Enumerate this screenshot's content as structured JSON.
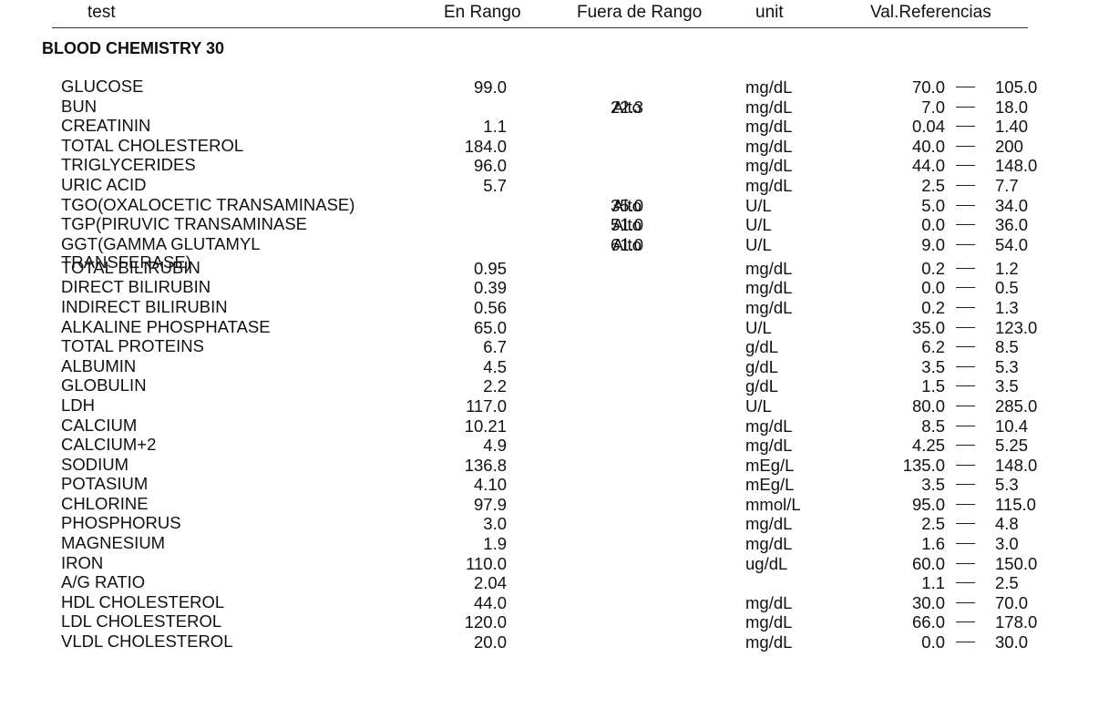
{
  "header": {
    "test": "test",
    "en_rango": "En Rango",
    "fuera_de_rango": "Fuera de Rango",
    "unit": "unit",
    "val_referencias": "Val.Referencias"
  },
  "section_title": "BLOOD CHEMISTRY 30",
  "rows": [
    {
      "test": "GLUCOSE",
      "in_range": "99.0",
      "out_range": "",
      "flag": "",
      "unit": "mg/dL",
      "ref_low": "70.0",
      "ref_high": "105.0"
    },
    {
      "test": "BUN",
      "in_range": "",
      "out_range": "22.3",
      "flag": "Alto",
      "unit": "mg/dL",
      "ref_low": "7.0",
      "ref_high": "18.0"
    },
    {
      "test": "CREATININ",
      "in_range": "1.1",
      "out_range": "",
      "flag": "",
      "unit": "mg/dL",
      "ref_low": "0.04",
      "ref_high": "1.40"
    },
    {
      "test": "TOTAL CHOLESTEROL",
      "in_range": "184.0",
      "out_range": "",
      "flag": "",
      "unit": "mg/dL",
      "ref_low": "40.0",
      "ref_high": "200"
    },
    {
      "test": "TRIGLYCERIDES",
      "in_range": "96.0",
      "out_range": "",
      "flag": "",
      "unit": "mg/dL",
      "ref_low": "44.0",
      "ref_high": "148.0"
    },
    {
      "test": "URIC ACID",
      "in_range": "5.7",
      "out_range": "",
      "flag": "",
      "unit": "mg/dL",
      "ref_low": "2.5",
      "ref_high": "7.7"
    },
    {
      "test": "TGO(OXALOCETIC TRANSAMINASE)",
      "in_range": "",
      "out_range": "35.0",
      "flag": "Alto",
      "unit": "U/L",
      "ref_low": "5.0",
      "ref_high": "34.0"
    },
    {
      "test": "TGP(PIRUVIC TRANSAMINASE",
      "in_range": "",
      "out_range": "51.0",
      "flag": "Alto",
      "unit": "U/L",
      "ref_low": "0.0",
      "ref_high": "36.0"
    },
    {
      "test": "GGT(GAMMA GLUTAMYL TRANSFERASE)",
      "in_range": "",
      "out_range": "61.0",
      "flag": "Alto",
      "unit": "U/L",
      "ref_low": "9.0",
      "ref_high": "54.0"
    },
    {
      "test": "TOTAL BILIRUBIN",
      "in_range": "0.95",
      "out_range": "",
      "flag": "",
      "unit": "mg/dL",
      "ref_low": "0.2",
      "ref_high": "1.2"
    },
    {
      "test": "DIRECT BILIRUBIN",
      "in_range": "0.39",
      "out_range": "",
      "flag": "",
      "unit": "mg/dL",
      "ref_low": "0.0",
      "ref_high": "0.5"
    },
    {
      "test": "INDIRECT BILIRUBIN",
      "in_range": "0.56",
      "out_range": "",
      "flag": "",
      "unit": "mg/dL",
      "ref_low": "0.2",
      "ref_high": "1.3"
    },
    {
      "test": "ALKALINE PHOSPHATASE",
      "in_range": "65.0",
      "out_range": "",
      "flag": "",
      "unit": "U/L",
      "ref_low": "35.0",
      "ref_high": "123.0"
    },
    {
      "test": "TOTAL PROTEINS",
      "in_range": "6.7",
      "out_range": "",
      "flag": "",
      "unit": "g/dL",
      "ref_low": "6.2",
      "ref_high": "8.5"
    },
    {
      "test": "ALBUMIN",
      "in_range": "4.5",
      "out_range": "",
      "flag": "",
      "unit": "g/dL",
      "ref_low": "3.5",
      "ref_high": "5.3"
    },
    {
      "test": "GLOBULIN",
      "in_range": "2.2",
      "out_range": "",
      "flag": "",
      "unit": "g/dL",
      "ref_low": "1.5",
      "ref_high": "3.5"
    },
    {
      "test": "LDH",
      "in_range": "117.0",
      "out_range": "",
      "flag": "",
      "unit": "U/L",
      "ref_low": "80.0",
      "ref_high": "285.0"
    },
    {
      "test": "CALCIUM",
      "in_range": "10.21",
      "out_range": "",
      "flag": "",
      "unit": "mg/dL",
      "ref_low": "8.5",
      "ref_high": "10.4"
    },
    {
      "test": "CALCIUM+2",
      "in_range": "4.9",
      "out_range": "",
      "flag": "",
      "unit": "mg/dL",
      "ref_low": "4.25",
      "ref_high": "5.25"
    },
    {
      "test": "SODIUM",
      "in_range": "136.8",
      "out_range": "",
      "flag": "",
      "unit": "mEg/L",
      "ref_low": "135.0",
      "ref_high": "148.0"
    },
    {
      "test": "POTASIUM",
      "in_range": "4.10",
      "out_range": "",
      "flag": "",
      "unit": "mEg/L",
      "ref_low": "3.5",
      "ref_high": "5.3"
    },
    {
      "test": "CHLORINE",
      "in_range": "97.9",
      "out_range": "",
      "flag": "",
      "unit": "mmol/L",
      "ref_low": "95.0",
      "ref_high": "115.0"
    },
    {
      "test": "PHOSPHORUS",
      "in_range": "3.0",
      "out_range": "",
      "flag": "",
      "unit": "mg/dL",
      "ref_low": "2.5",
      "ref_high": "4.8"
    },
    {
      "test": "MAGNESIUM",
      "in_range": "1.9",
      "out_range": "",
      "flag": "",
      "unit": "mg/dL",
      "ref_low": "1.6",
      "ref_high": "3.0"
    },
    {
      "test": "IRON",
      "in_range": "110.0",
      "out_range": "",
      "flag": "",
      "unit": "ug/dL",
      "ref_low": "60.0",
      "ref_high": "150.0"
    },
    {
      "test": "A/G RATIO",
      "in_range": "2.04",
      "out_range": "",
      "flag": "",
      "unit": "",
      "ref_low": "1.1",
      "ref_high": "2.5"
    },
    {
      "test": "HDL CHOLESTEROL",
      "in_range": "44.0",
      "out_range": "",
      "flag": "",
      "unit": "mg/dL",
      "ref_low": "30.0",
      "ref_high": "70.0"
    },
    {
      "test": "LDL CHOLESTEROL",
      "in_range": "120.0",
      "out_range": "",
      "flag": "",
      "unit": "mg/dL",
      "ref_low": "66.0",
      "ref_high": "178.0"
    },
    {
      "test": "VLDL CHOLESTEROL",
      "in_range": "20.0",
      "out_range": "",
      "flag": "",
      "unit": "mg/dL",
      "ref_low": "0.0",
      "ref_high": "30.0"
    }
  ]
}
